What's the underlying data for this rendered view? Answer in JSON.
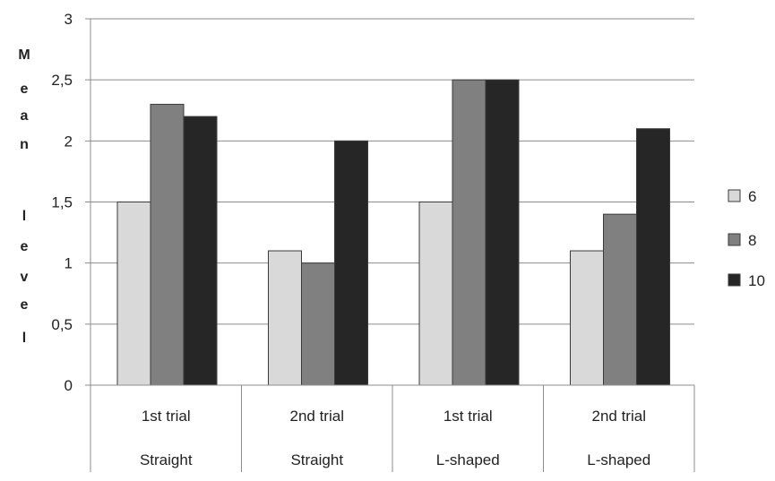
{
  "chart_data": {
    "type": "bar",
    "title": "",
    "xlabel": "",
    "ylabel": "Mean level",
    "ylim": [
      0,
      3
    ],
    "yticks": [
      "0",
      "0,5",
      "1",
      "1,5",
      "2",
      "2,5",
      "3"
    ],
    "grid": true,
    "legend_position": "right",
    "categories": [
      {
        "line1": "1st trial",
        "line2": "Straight"
      },
      {
        "line1": "2nd trial",
        "line2": "Straight"
      },
      {
        "line1": "1st trial",
        "line2": "L-shaped"
      },
      {
        "line1": "2nd trial",
        "line2": "L-shaped"
      }
    ],
    "series": [
      {
        "name": "6",
        "color": "#d9d9d9",
        "values": [
          1.5,
          1.1,
          1.5,
          1.1
        ]
      },
      {
        "name": "8",
        "color": "#808080",
        "values": [
          2.3,
          1.0,
          2.5,
          1.4
        ]
      },
      {
        "name": "10",
        "color": "#262626",
        "values": [
          2.2,
          2.0,
          2.5,
          2.1
        ]
      }
    ]
  }
}
